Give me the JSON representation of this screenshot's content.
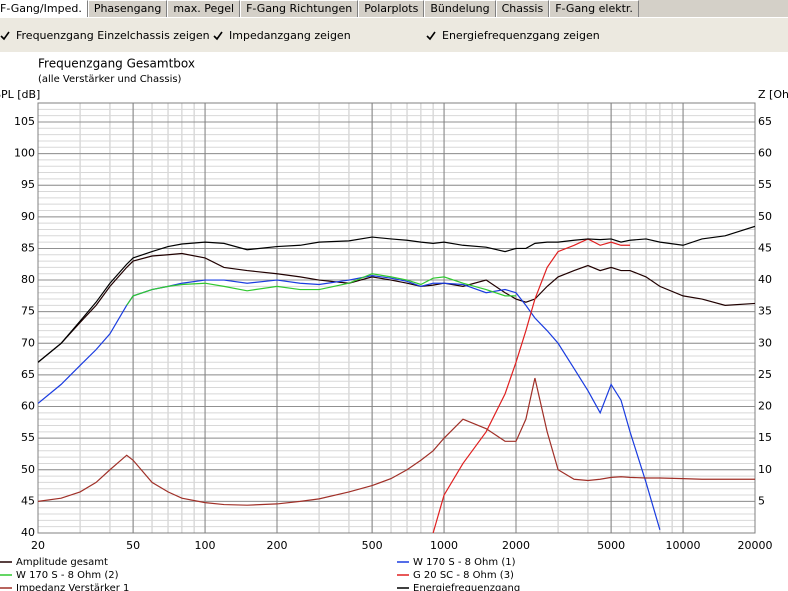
{
  "tabs": [
    "F-Gang/Imped.",
    "Phasengang",
    "max. Pegel",
    "F-Gang Richtungen",
    "Polarplots",
    "Bündelung",
    "Chassis",
    "F-Gang elektr."
  ],
  "checkboxes": [
    "Frequenzgang Einzelchassis zeigen",
    "Impedanzgang zeigen",
    "Energiefrequenzgang zeigen"
  ],
  "chart_data": {
    "type": "line",
    "title": "Frequenzgang Gesamtbox",
    "subtitle": "(alle Verstärker und Chassis)",
    "y_label": "SPL [dB]",
    "y2_label": "Z [Ohm]",
    "xscale": "log",
    "grid": true,
    "x": [
      20,
      25,
      30,
      35,
      40,
      47,
      50,
      60,
      70,
      80,
      100,
      120,
      150,
      200,
      250,
      300,
      400,
      500,
      600,
      700,
      800,
      900,
      1000,
      1200,
      1500,
      1800,
      2000,
      2200,
      2400,
      2700,
      3000,
      3500,
      4000,
      4500,
      5000,
      5500,
      6000,
      7000,
      8000,
      10000,
      12000,
      15000,
      20000
    ],
    "xlim": [
      20,
      20000
    ],
    "xticks": [
      20,
      50,
      100,
      200,
      500,
      1000,
      2000,
      5000,
      10000,
      20000
    ],
    "ylim": [
      40,
      108
    ],
    "yticks": [
      40,
      45,
      50,
      55,
      60,
      65,
      70,
      75,
      80,
      85,
      90,
      95,
      100,
      105
    ],
    "y2lim": [
      0,
      68
    ],
    "y2ticks": [
      5,
      10,
      15,
      20,
      25,
      30,
      35,
      40,
      45,
      50,
      55,
      60,
      65
    ],
    "series": [
      {
        "name": "Amplitude gesamt",
        "color": "#200000",
        "values": [
          67,
          70,
          73.3,
          76,
          79,
          82,
          83,
          83.8,
          84,
          84.2,
          83.5,
          82,
          81.5,
          81,
          80.5,
          80,
          79.5,
          80.5,
          80,
          79.5,
          79,
          79.2,
          79.5,
          79,
          80,
          78,
          77,
          76.5,
          77,
          79,
          80.5,
          81.5,
          82.3,
          81.5,
          82,
          81.5,
          81.5,
          80.5,
          79,
          77.5,
          77,
          76,
          76.3
        ]
      },
      {
        "name": "W 170 S - 8 Ohm (1)",
        "color": "#1a3ce0",
        "values": [
          60.5,
          63.5,
          66.5,
          69,
          71.5,
          76,
          77.5,
          78.5,
          79,
          79.5,
          80,
          80,
          79.5,
          80,
          79.5,
          79.3,
          80,
          80.7,
          80.3,
          79.8,
          79,
          79.5,
          79.5,
          79.3,
          78,
          78.5,
          78,
          76,
          74,
          72,
          70,
          66,
          62.5,
          59,
          63.5,
          61,
          56,
          48,
          40.5,
          null,
          null,
          null,
          null
        ]
      },
      {
        "name": "W 170 S - 8 Ohm (2)",
        "color": "#30c830",
        "values": [
          null,
          null,
          null,
          null,
          null,
          76,
          77.5,
          78.5,
          79,
          79.3,
          79.5,
          79,
          78.3,
          79,
          78.5,
          78.5,
          79.5,
          81,
          80.5,
          80,
          79.3,
          80.3,
          80.5,
          79.5,
          78.5,
          77.5,
          77.5,
          null,
          null,
          null,
          null,
          null,
          null,
          null,
          null,
          null,
          null,
          null,
          null,
          null,
          null,
          null,
          null
        ]
      },
      {
        "name": "G 20 SC - 8 Ohm (3)",
        "color": "#e02020",
        "values": [
          null,
          null,
          null,
          null,
          null,
          null,
          null,
          null,
          null,
          null,
          null,
          null,
          null,
          null,
          null,
          null,
          null,
          null,
          null,
          null,
          null,
          40,
          46,
          51,
          56,
          62,
          67,
          72,
          77,
          82,
          84.5,
          85.5,
          86.5,
          85.5,
          86,
          85.5,
          85.5,
          null,
          null,
          null,
          null,
          null,
          null
        ]
      },
      {
        "name": "Impedanz Verstärker 1",
        "color": "#a03028",
        "axis": "y2",
        "values": [
          5,
          5.5,
          6.5,
          8,
          10,
          12.3,
          11.5,
          8,
          6.5,
          5.5,
          4.8,
          4.5,
          4.4,
          4.6,
          5,
          5.4,
          6.5,
          7.5,
          8.6,
          10,
          11.5,
          13,
          15,
          18,
          16.5,
          14.5,
          14.5,
          18,
          24.5,
          16,
          10,
          8.5,
          8.3,
          8.5,
          8.8,
          8.9,
          8.8,
          8.7,
          8.7,
          8.6,
          8.5,
          8.5,
          8.5
        ]
      },
      {
        "name": "Energiefrequenzgang",
        "color": "#000000",
        "values": [
          67,
          70,
          73.5,
          76.5,
          79.5,
          82.5,
          83.5,
          84.5,
          85.3,
          85.7,
          86,
          85.8,
          84.8,
          85.3,
          85.5,
          86,
          86.2,
          86.8,
          86.5,
          86.3,
          86,
          85.8,
          86,
          85.5,
          85.2,
          84.5,
          85,
          85,
          85.8,
          86,
          86,
          86.3,
          86.5,
          86.4,
          86.5,
          86,
          86.3,
          86.5,
          86,
          85.5,
          86.5,
          87,
          88.5
        ]
      }
    ]
  }
}
